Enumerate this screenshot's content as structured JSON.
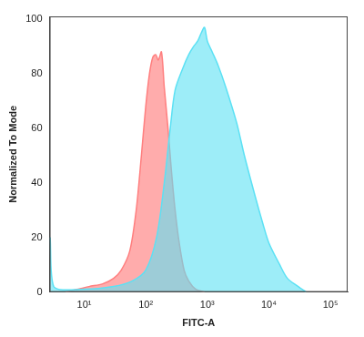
{
  "chart_data": {
    "type": "area",
    "x_label": "FITC-A",
    "y_label": "Normalized To Mode",
    "log": "x",
    "grid": false,
    "xlim": [
      2.75,
      190000
    ],
    "ylim": [
      0,
      101
    ],
    "xticks": [
      {
        "value": 10,
        "label": "10¹"
      },
      {
        "value": 100,
        "label": "10²"
      },
      {
        "value": 1000,
        "label": "10³"
      },
      {
        "value": 10000,
        "label": "10⁴"
      },
      {
        "value": 100000,
        "label": "10⁵"
      }
    ],
    "yticks": [
      0,
      20,
      40,
      60,
      80,
      100
    ],
    "series": [
      {
        "color": "#5ce1f4",
        "x": [
          2.8,
          3.2,
          10,
          30,
          60,
          100,
          150,
          200,
          250,
          300,
          400,
          500,
          600,
          700,
          800,
          900,
          1000,
          1200,
          1500,
          2000,
          3000,
          4000,
          6000,
          8000,
          10000,
          15000,
          20000,
          30000,
          40000
        ],
        "values": [
          20,
          2,
          1,
          2,
          4,
          8,
          20,
          40,
          60,
          74,
          82,
          87,
          90,
          92,
          95,
          97,
          92,
          88,
          83,
          75,
          62,
          50,
          35,
          25,
          18,
          10,
          5,
          2,
          0
        ]
      },
      {
        "color": "#ff7f7f",
        "x": [
          5,
          8,
          12,
          20,
          30,
          40,
          55,
          70,
          85,
          100,
          115,
          130,
          145,
          160,
          180,
          200,
          230,
          260,
          300,
          350,
          420,
          500,
          650,
          900
        ],
        "values": [
          0,
          1,
          2,
          3,
          5,
          8,
          15,
          30,
          50,
          68,
          80,
          86,
          87,
          85,
          88,
          75,
          60,
          45,
          30,
          18,
          8,
          4,
          1,
          0
        ]
      }
    ]
  }
}
